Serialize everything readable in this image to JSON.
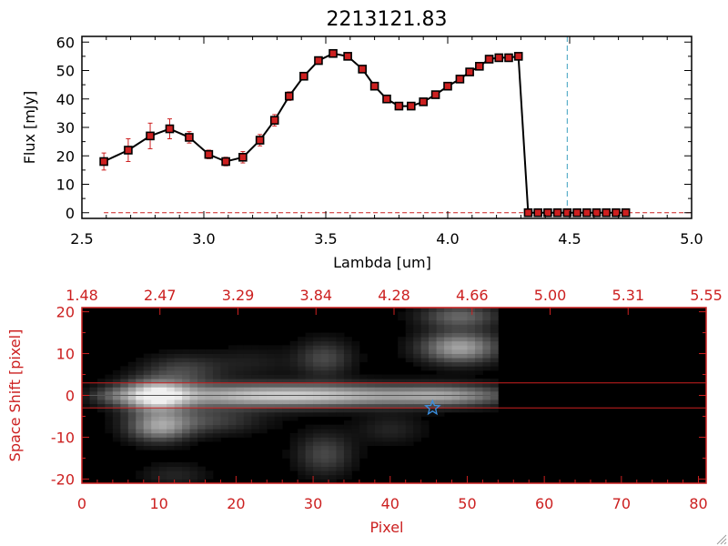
{
  "title": "2213121.83",
  "chart_data": [
    {
      "type": "line",
      "xlabel": "Lambda [um]",
      "ylabel": "Flux [mJy]",
      "xlim": [
        2.5,
        5.0
      ],
      "ylim": [
        -2,
        62
      ],
      "xticks": [
        "2.5",
        "3.0",
        "3.5",
        "4.0",
        "4.5",
        "5.0"
      ],
      "xtick_values": [
        2.5,
        3.0,
        3.5,
        4.0,
        4.5,
        5.0
      ],
      "yticks": [
        "0",
        "10",
        "20",
        "30",
        "40",
        "50",
        "60"
      ],
      "ytick_values": [
        0,
        10,
        20,
        30,
        40,
        50,
        60
      ],
      "series_color": "#000000",
      "marker_color": "#cc2020",
      "errorbar_color": "#cc2020",
      "vline_x": 4.49,
      "vline_color": "#3a9fbf",
      "x": [
        2.59,
        2.69,
        2.78,
        2.86,
        2.94,
        3.02,
        3.09,
        3.16,
        3.23,
        3.29,
        3.35,
        3.41,
        3.47,
        3.53,
        3.59,
        3.65,
        3.7,
        3.75,
        3.8,
        3.85,
        3.9,
        3.95,
        4.0,
        4.05,
        4.09,
        4.13,
        4.17,
        4.21,
        4.25,
        4.29,
        4.33,
        4.37,
        4.41,
        4.45,
        4.49,
        4.53,
        4.57,
        4.61,
        4.65,
        4.69,
        4.73
      ],
      "y": [
        18,
        22,
        27,
        29.5,
        26.5,
        20.5,
        18,
        19.5,
        25.5,
        32.5,
        41,
        48,
        53.5,
        56,
        55,
        50.5,
        44.5,
        40,
        37.5,
        37.5,
        39,
        41.5,
        44.5,
        47,
        49.5,
        51.5,
        54,
        54.5,
        54.5,
        55,
        0,
        0,
        0,
        0,
        0,
        0,
        0,
        0,
        0,
        0,
        0
      ],
      "yerr": [
        3,
        4,
        4.5,
        3.5,
        2,
        1.5,
        1.5,
        2,
        2,
        2,
        1.5,
        1,
        1,
        1,
        1,
        1,
        1,
        1,
        1,
        1,
        1,
        1,
        1,
        1,
        1,
        1,
        1,
        1,
        1,
        1,
        0,
        0,
        0,
        0,
        0,
        0,
        0,
        0,
        0,
        0,
        0
      ]
    },
    {
      "type": "heatmap",
      "xlabel": "Pixel",
      "ylabel": "Space Shift [pixel]",
      "xlim": [
        0,
        81
      ],
      "ylim": [
        -21,
        21
      ],
      "xticks": [
        "0",
        "10",
        "20",
        "30",
        "40",
        "50",
        "60",
        "70",
        "80"
      ],
      "xtick_values": [
        0,
        10,
        20,
        30,
        40,
        50,
        60,
        70,
        80
      ],
      "yticks": [
        "-20",
        "-10",
        "0",
        "10",
        "20"
      ],
      "ytick_values": [
        -20,
        -10,
        0,
        10,
        20
      ],
      "top_ticks": [
        "1.48",
        "2.47",
        "3.29",
        "3.84",
        "4.28",
        "4.66",
        "5.00",
        "5.31",
        "5.55"
      ],
      "data_extent_pixel": 54,
      "hlines": [
        3,
        -3
      ],
      "hline_color": "#cc2020",
      "center_line": 0,
      "star_marker": {
        "x": 45.5,
        "y": -3,
        "color": "#3a8fe0"
      },
      "axis_color": "#cc2020",
      "blobs": [
        {
          "x": 9.5,
          "y": 0,
          "sx": 3.0,
          "sy": 2.6,
          "a": 0.85
        },
        {
          "x": 20,
          "y": 0,
          "sx": 9.0,
          "sy": 2.0,
          "a": 0.6
        },
        {
          "x": 34,
          "y": 0,
          "sx": 9.0,
          "sy": 1.9,
          "a": 0.58
        },
        {
          "x": 48,
          "y": 0,
          "sx": 5.5,
          "sy": 1.8,
          "a": 0.5
        },
        {
          "x": 10,
          "y": -7.5,
          "sx": 2.8,
          "sy": 2.5,
          "a": 0.58
        },
        {
          "x": 16,
          "y": -6,
          "sx": 5.0,
          "sy": 2.2,
          "a": 0.28
        },
        {
          "x": 13,
          "y": 6,
          "sx": 3.5,
          "sy": 2.5,
          "a": 0.28
        },
        {
          "x": 31.5,
          "y": 9,
          "sx": 2.5,
          "sy": 3.0,
          "a": 0.3
        },
        {
          "x": 49,
          "y": 11.5,
          "sx": 3.5,
          "sy": 2.6,
          "a": 0.68
        },
        {
          "x": 49,
          "y": 19,
          "sx": 3.5,
          "sy": 2.0,
          "a": 0.42
        },
        {
          "x": 31.5,
          "y": -14,
          "sx": 2.5,
          "sy": 3.5,
          "a": 0.3
        },
        {
          "x": 4,
          "y": 0,
          "sx": 2.0,
          "sy": 1.5,
          "a": 0.2
        },
        {
          "x": 12,
          "y": -19,
          "sx": 3.0,
          "sy": 2.0,
          "a": 0.15
        },
        {
          "x": 40,
          "y": -8,
          "sx": 3.0,
          "sy": 2.5,
          "a": 0.15
        },
        {
          "x": 22,
          "y": 8,
          "sx": 4.0,
          "sy": 2.5,
          "a": 0.12
        }
      ]
    }
  ]
}
